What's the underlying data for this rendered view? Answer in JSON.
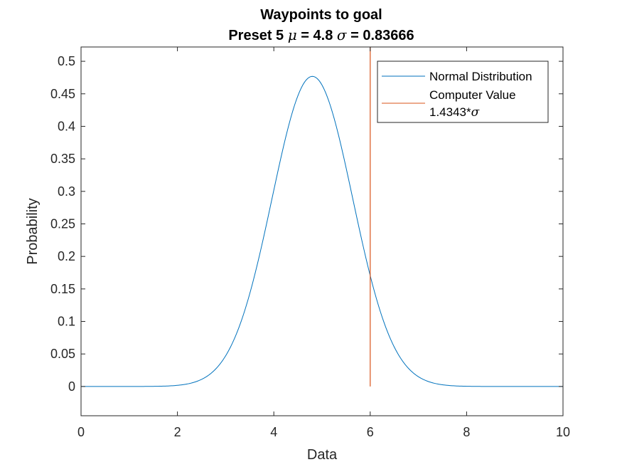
{
  "chart_data": {
    "type": "line",
    "title": "Waypoints to goal",
    "subtitle_parts": {
      "prefix": "Preset 5 ",
      "mu_symbol": "μ",
      "mu_text": " = 4.8 ",
      "sigma_symbol": "σ",
      "sigma_text": " = 0.83666"
    },
    "xlabel": "Data",
    "ylabel": "Probability",
    "xlim": [
      0,
      10
    ],
    "ylim": [
      -0.045,
      0.522
    ],
    "xticks": [
      0,
      2,
      4,
      6,
      8,
      10
    ],
    "yticks": [
      0,
      0.05,
      0.1,
      0.15,
      0.2,
      0.25,
      0.3,
      0.35,
      0.4,
      0.45,
      0.5
    ],
    "grid": false,
    "legend_position": "top-right",
    "series": [
      {
        "name": "Normal Distribution",
        "kind": "normal-pdf",
        "mu": 4.8,
        "sigma": 0.83666,
        "x_range": [
          0,
          10
        ],
        "color": "#0072BD"
      },
      {
        "name": "Computer Value",
        "name_line2": "1.4343*",
        "name_line2_symbol": "σ",
        "kind": "vertical-line",
        "x": 6,
        "y_range": [
          0,
          0.522
        ],
        "color": "#D95319"
      }
    ]
  }
}
